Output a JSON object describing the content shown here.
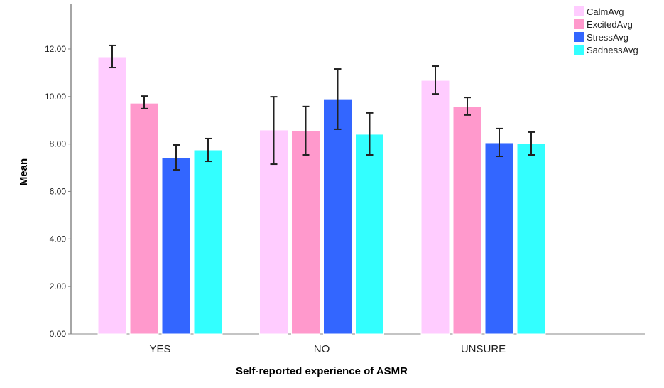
{
  "chart_data": {
    "type": "bar",
    "title": "",
    "xlabel": "Self-reported experience of ASMR",
    "ylabel": "Mean",
    "categories": [
      "YES",
      "NO",
      "UNSURE"
    ],
    "ylim": [
      0,
      13.5
    ],
    "yticks": [
      "0.00",
      "2.00",
      "4.00",
      "6.00",
      "8.00",
      "10.00",
      "12.00"
    ],
    "ytick_values": [
      0,
      2,
      4,
      6,
      8,
      10,
      12
    ],
    "grid": false,
    "legend_position": "top-right",
    "series": [
      {
        "name": "CalmAvg",
        "color": "#ffccff",
        "values": [
          11.67,
          8.59,
          10.68
        ],
        "err_low": [
          11.22,
          7.15,
          10.11
        ],
        "err_high": [
          12.15,
          9.99,
          11.28
        ]
      },
      {
        "name": "ExcitedAvg",
        "color": "#ff99cc",
        "values": [
          9.72,
          8.56,
          9.58
        ],
        "err_low": [
          9.49,
          7.54,
          9.22
        ],
        "err_high": [
          10.02,
          9.58,
          9.96
        ]
      },
      {
        "name": "StressAvg",
        "color": "#3366ff",
        "values": [
          7.42,
          9.87,
          8.05
        ],
        "err_low": [
          6.91,
          8.62,
          7.48
        ],
        "err_high": [
          7.96,
          11.16,
          8.65
        ]
      },
      {
        "name": "SadnessAvg",
        "color": "#33ffff",
        "values": [
          7.75,
          8.41,
          8.02
        ],
        "err_low": [
          7.27,
          7.54,
          7.54
        ],
        "err_high": [
          8.23,
          9.31,
          8.5
        ]
      }
    ]
  }
}
